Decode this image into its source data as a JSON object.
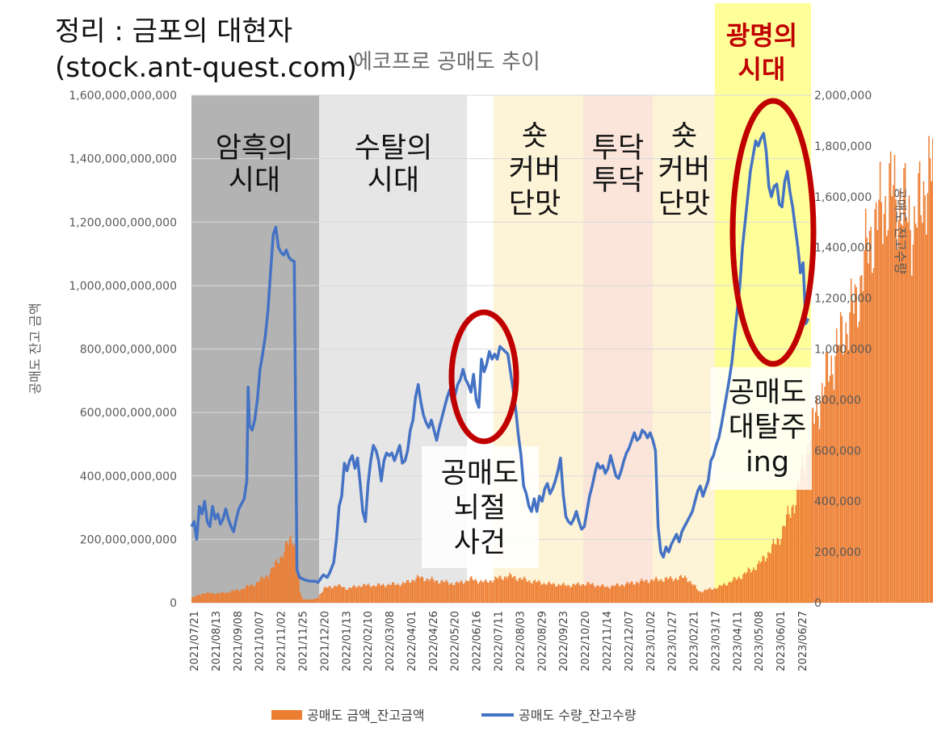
{
  "title": "정리 : 금포의 대현자",
  "source": "(stock.ant-quest.com)",
  "subtitle": "에코프로 공매도 추이",
  "colors": {
    "amount": "#ed7d31",
    "qty": "#4472c4"
  },
  "chart_data": {
    "type": "bar+line",
    "x_tick_labels": [
      "2021/07/21",
      "2021/08/13",
      "2021/09/08",
      "2021/10/07",
      "2021/11/02",
      "2021/11/25",
      "2021/12/20",
      "2022/01/13",
      "2022/02/10",
      "2022/03/08",
      "2022/04/01",
      "2022/04/26",
      "2022/05/20",
      "2022/06/16",
      "2022/07/11",
      "2022/08/03",
      "2022/08/29",
      "2022/09/23",
      "2022/10/20",
      "2022/11/14",
      "2022/12/07",
      "2023/01/02",
      "2023/01/27",
      "2023/02/21",
      "2023/03/17",
      "2023/04/11",
      "2023/05/08",
      "2023/06/01",
      "2023/06/27"
    ],
    "y_left": {
      "label": "공매도 잔고 금액",
      "range": [
        0,
        1600000000000
      ],
      "tick_labels": [
        "0",
        "200,000,000,000",
        "400,000,000,000",
        "600,000,000,000",
        "800,000,000,000",
        "1,000,000,000,000",
        "1,200,000,000,000",
        "1,400,000,000,000",
        "1,600,000,000,000"
      ]
    },
    "y_right": {
      "label": "공매도 잔고수량",
      "range": [
        0,
        2000000
      ],
      "tick_labels": [
        "0",
        "200,000",
        "400,000",
        "600,000",
        "800,000",
        "1,000,000",
        "1,200,000",
        "1,400,000",
        "1,600,000",
        "1,800,000",
        "2,000,000"
      ]
    },
    "series": [
      {
        "name": "공매도 금액_잔고금액",
        "type": "bar",
        "axis": "left",
        "points": [
          [
            0,
            15000000000
          ],
          [
            8,
            30000000000
          ],
          [
            22,
            30000000000
          ],
          [
            35,
            40000000000
          ],
          [
            48,
            60000000000
          ],
          [
            58,
            90000000000
          ],
          [
            68,
            150000000000
          ],
          [
            74,
            195000000000
          ],
          [
            77,
            205000000000
          ],
          [
            80,
            150000000000
          ],
          [
            82,
            30000000000
          ],
          [
            84,
            12000000000
          ],
          [
            90,
            10000000000
          ],
          [
            94,
            12000000000
          ],
          [
            96,
            20000000000
          ],
          [
            100,
            45000000000
          ],
          [
            110,
            55000000000
          ],
          [
            118,
            45000000000
          ],
          [
            128,
            55000000000
          ],
          [
            140,
            55000000000
          ],
          [
            160,
            60000000000
          ],
          [
            172,
            80000000000
          ],
          [
            185,
            70000000000
          ],
          [
            200,
            60000000000
          ],
          [
            212,
            75000000000
          ],
          [
            222,
            65000000000
          ],
          [
            230,
            75000000000
          ],
          [
            240,
            85000000000
          ],
          [
            255,
            70000000000
          ],
          [
            270,
            60000000000
          ],
          [
            285,
            55000000000
          ],
          [
            300,
            60000000000
          ],
          [
            315,
            50000000000
          ],
          [
            330,
            60000000000
          ],
          [
            345,
            70000000000
          ],
          [
            360,
            75000000000
          ],
          [
            375,
            80000000000
          ],
          [
            385,
            35000000000
          ],
          [
            400,
            50000000000
          ],
          [
            415,
            80000000000
          ],
          [
            430,
            120000000000
          ],
          [
            445,
            200000000000
          ],
          [
            458,
            330000000000
          ],
          [
            470,
            550000000000
          ],
          [
            482,
            720000000000
          ],
          [
            494,
            850000000000
          ],
          [
            504,
            950000000000
          ],
          [
            514,
            1150000000000
          ],
          [
            522,
            1230000000000
          ],
          [
            530,
            1300000000000
          ],
          [
            540,
            1250000000000
          ],
          [
            548,
            1180000000000
          ],
          [
            556,
            1320000000000
          ],
          [
            562,
            1360000000000
          ],
          [
            568,
            1300000000000
          ],
          [
            572,
            1240000000000
          ]
        ]
      },
      {
        "name": "공매도 수량_잔고수량",
        "type": "line",
        "axis": "right",
        "points": [
          [
            0,
            300000
          ],
          [
            2,
            320000
          ],
          [
            4,
            250000
          ],
          [
            6,
            380000
          ],
          [
            8,
            350000
          ],
          [
            10,
            400000
          ],
          [
            12,
            320000
          ],
          [
            14,
            300000
          ],
          [
            16,
            380000
          ],
          [
            18,
            330000
          ],
          [
            20,
            350000
          ],
          [
            22,
            310000
          ],
          [
            24,
            330000
          ],
          [
            26,
            370000
          ],
          [
            28,
            330000
          ],
          [
            30,
            300000
          ],
          [
            32,
            280000
          ],
          [
            34,
            330000
          ],
          [
            36,
            370000
          ],
          [
            38,
            390000
          ],
          [
            40,
            410000
          ],
          [
            42,
            480000
          ],
          [
            43,
            850000
          ],
          [
            44,
            700000
          ],
          [
            46,
            680000
          ],
          [
            48,
            720000
          ],
          [
            50,
            800000
          ],
          [
            52,
            920000
          ],
          [
            54,
            980000
          ],
          [
            56,
            1050000
          ],
          [
            58,
            1150000
          ],
          [
            60,
            1300000
          ],
          [
            62,
            1450000
          ],
          [
            64,
            1480000
          ],
          [
            66,
            1400000
          ],
          [
            68,
            1380000
          ],
          [
            70,
            1370000
          ],
          [
            72,
            1390000
          ],
          [
            74,
            1360000
          ],
          [
            76,
            1350000
          ],
          [
            78,
            1345000
          ],
          [
            80,
            130000
          ],
          [
            82,
            100000
          ],
          [
            86,
            90000
          ],
          [
            90,
            85000
          ],
          [
            94,
            85000
          ],
          [
            96,
            80000
          ],
          [
            98,
            95000
          ],
          [
            100,
            110000
          ],
          [
            103,
            100000
          ],
          [
            105,
            120000
          ],
          [
            108,
            160000
          ],
          [
            110,
            250000
          ],
          [
            112,
            380000
          ],
          [
            114,
            420000
          ],
          [
            116,
            550000
          ],
          [
            118,
            520000
          ],
          [
            120,
            560000
          ],
          [
            122,
            580000
          ],
          [
            124,
            530000
          ],
          [
            126,
            570000
          ],
          [
            128,
            470000
          ],
          [
            130,
            360000
          ],
          [
            132,
            320000
          ],
          [
            134,
            470000
          ],
          [
            136,
            560000
          ],
          [
            138,
            620000
          ],
          [
            140,
            600000
          ],
          [
            142,
            560000
          ],
          [
            144,
            480000
          ],
          [
            146,
            560000
          ],
          [
            148,
            590000
          ],
          [
            150,
            580000
          ],
          [
            152,
            590000
          ],
          [
            154,
            560000
          ],
          [
            156,
            590000
          ],
          [
            158,
            620000
          ],
          [
            160,
            550000
          ],
          [
            162,
            560000
          ],
          [
            164,
            600000
          ],
          [
            166,
            680000
          ],
          [
            168,
            720000
          ],
          [
            170,
            810000
          ],
          [
            172,
            860000
          ],
          [
            174,
            790000
          ],
          [
            176,
            740000
          ],
          [
            178,
            710000
          ],
          [
            180,
            690000
          ],
          [
            182,
            720000
          ],
          [
            184,
            680000
          ],
          [
            186,
            640000
          ],
          [
            188,
            690000
          ],
          [
            190,
            730000
          ],
          [
            192,
            770000
          ],
          [
            194,
            810000
          ],
          [
            196,
            840000
          ],
          [
            198,
            790000
          ],
          [
            200,
            820000
          ],
          [
            202,
            860000
          ],
          [
            204,
            880000
          ],
          [
            206,
            920000
          ],
          [
            208,
            880000
          ],
          [
            210,
            860000
          ],
          [
            212,
            830000
          ],
          [
            214,
            900000
          ],
          [
            216,
            800000
          ],
          [
            218,
            770000
          ],
          [
            220,
            960000
          ],
          [
            222,
            910000
          ],
          [
            224,
            940000
          ],
          [
            226,
            990000
          ],
          [
            228,
            960000
          ],
          [
            230,
            980000
          ],
          [
            232,
            960000
          ],
          [
            234,
            1010000
          ],
          [
            236,
            1000000
          ],
          [
            238,
            990000
          ],
          [
            240,
            980000
          ],
          [
            242,
            910000
          ],
          [
            244,
            840000
          ],
          [
            246,
            760000
          ],
          [
            248,
            660000
          ],
          [
            250,
            580000
          ],
          [
            252,
            460000
          ],
          [
            254,
            430000
          ],
          [
            256,
            380000
          ],
          [
            258,
            360000
          ],
          [
            260,
            410000
          ],
          [
            262,
            360000
          ],
          [
            264,
            420000
          ],
          [
            266,
            400000
          ],
          [
            268,
            450000
          ],
          [
            270,
            470000
          ],
          [
            272,
            430000
          ],
          [
            274,
            450000
          ],
          [
            276,
            480000
          ],
          [
            278,
            520000
          ],
          [
            280,
            570000
          ],
          [
            282,
            430000
          ],
          [
            284,
            340000
          ],
          [
            286,
            320000
          ],
          [
            288,
            310000
          ],
          [
            290,
            330000
          ],
          [
            292,
            360000
          ],
          [
            294,
            320000
          ],
          [
            296,
            290000
          ],
          [
            298,
            300000
          ],
          [
            300,
            360000
          ],
          [
            302,
            420000
          ],
          [
            304,
            460000
          ],
          [
            306,
            510000
          ],
          [
            308,
            550000
          ],
          [
            310,
            530000
          ],
          [
            312,
            540000
          ],
          [
            314,
            510000
          ],
          [
            316,
            530000
          ],
          [
            318,
            580000
          ],
          [
            320,
            540000
          ],
          [
            322,
            500000
          ],
          [
            324,
            490000
          ],
          [
            326,
            520000
          ],
          [
            328,
            560000
          ],
          [
            330,
            590000
          ],
          [
            332,
            610000
          ],
          [
            334,
            640000
          ],
          [
            336,
            670000
          ],
          [
            338,
            640000
          ],
          [
            340,
            650000
          ],
          [
            342,
            680000
          ],
          [
            344,
            670000
          ],
          [
            346,
            650000
          ],
          [
            348,
            670000
          ],
          [
            350,
            640000
          ],
          [
            352,
            600000
          ],
          [
            354,
            300000
          ],
          [
            356,
            200000
          ],
          [
            358,
            180000
          ],
          [
            360,
            220000
          ],
          [
            362,
            200000
          ],
          [
            364,
            230000
          ],
          [
            366,
            250000
          ],
          [
            368,
            270000
          ],
          [
            370,
            240000
          ],
          [
            372,
            280000
          ],
          [
            374,
            300000
          ],
          [
            376,
            320000
          ],
          [
            378,
            340000
          ],
          [
            380,
            360000
          ],
          [
            382,
            400000
          ],
          [
            384,
            440000
          ],
          [
            386,
            460000
          ],
          [
            388,
            420000
          ],
          [
            390,
            450000
          ],
          [
            392,
            480000
          ],
          [
            394,
            560000
          ],
          [
            396,
            580000
          ],
          [
            398,
            620000
          ],
          [
            400,
            650000
          ],
          [
            402,
            700000
          ],
          [
            404,
            760000
          ],
          [
            406,
            820000
          ],
          [
            408,
            880000
          ],
          [
            410,
            950000
          ],
          [
            412,
            1050000
          ],
          [
            414,
            1150000
          ],
          [
            416,
            1250000
          ],
          [
            418,
            1400000
          ],
          [
            420,
            1500000
          ],
          [
            422,
            1600000
          ],
          [
            424,
            1700000
          ],
          [
            426,
            1760000
          ],
          [
            428,
            1820000
          ],
          [
            430,
            1800000
          ],
          [
            432,
            1830000
          ],
          [
            434,
            1850000
          ],
          [
            436,
            1780000
          ],
          [
            438,
            1640000
          ],
          [
            440,
            1600000
          ],
          [
            442,
            1640000
          ],
          [
            444,
            1650000
          ],
          [
            446,
            1570000
          ],
          [
            448,
            1560000
          ],
          [
            450,
            1660000
          ],
          [
            452,
            1700000
          ],
          [
            454,
            1620000
          ],
          [
            456,
            1560000
          ],
          [
            458,
            1480000
          ],
          [
            460,
            1400000
          ],
          [
            462,
            1300000
          ],
          [
            464,
            1340000
          ],
          [
            466,
            1100000
          ],
          [
            468,
            1120000
          ]
        ]
      }
    ],
    "legend_position": "bottom",
    "era_labels": [
      "암흑의\n시대",
      "수탈의\n시대",
      "숏\n커버\n단맛",
      "투닥\n투닥",
      "숏\n커버\n단맛",
      "광명의\n시대"
    ],
    "annotations": [
      "공매도\n뇌절\n사건",
      "공매도\n대탈주\ning"
    ]
  }
}
